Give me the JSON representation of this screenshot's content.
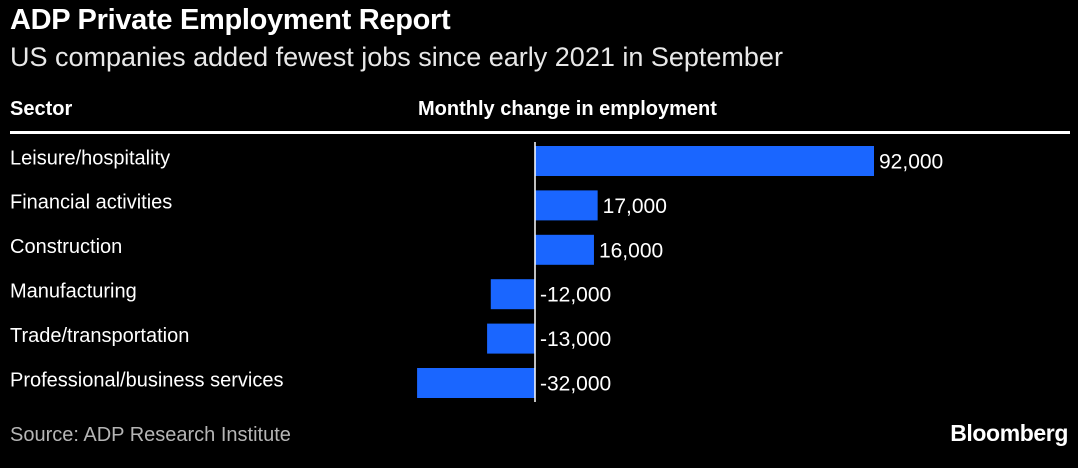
{
  "title": "ADP Private Employment Report",
  "subtitle": "US companies added fewest jobs since early 2021 in September",
  "headers": {
    "sector": "Sector",
    "change": "Monthly change in employment"
  },
  "source": "Source: ADP Research Institute",
  "brand": "Bloomberg",
  "colors": {
    "bar": "#1a66ff",
    "background": "#000000",
    "text": "#ffffff"
  },
  "chart_data": {
    "type": "bar",
    "orientation": "horizontal",
    "categories": [
      "Leisure/hospitality",
      "Financial activities",
      "Construction",
      "Manufacturing",
      "Trade/transportation",
      "Professional/business services"
    ],
    "values": [
      92000,
      17000,
      16000,
      -12000,
      -13000,
      -32000
    ],
    "value_labels": [
      "92,000",
      "17,000",
      "16,000",
      "-12,000",
      "-13,000",
      "-32,000"
    ],
    "title": "ADP Private Employment Report",
    "subtitle": "US companies added fewest jobs since early 2021 in September",
    "xlabel": "Monthly change in employment",
    "ylabel": "Sector",
    "grid": false,
    "legend": "none"
  }
}
